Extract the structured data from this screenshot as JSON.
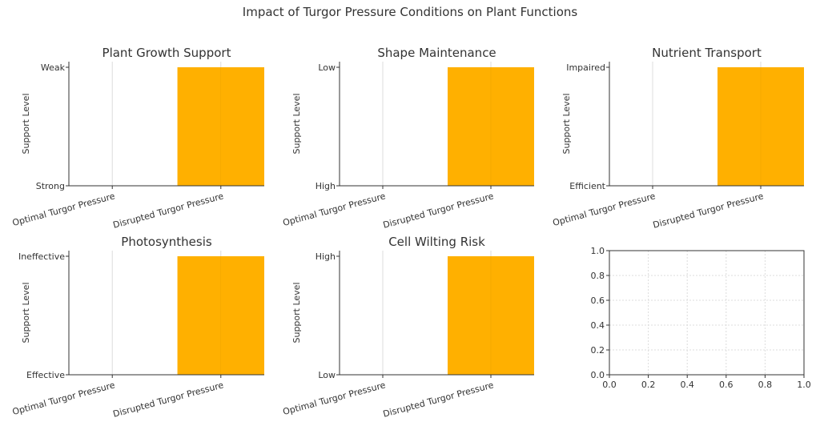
{
  "figure_title": "Impact of Turgor Pressure Conditions on Plant Functions",
  "colors": {
    "bar": "#ffb000",
    "axis": "#333333",
    "grid": "#dcdcdc",
    "text": "#333333"
  },
  "chart_data": [
    {
      "type": "bar",
      "title": "Plant Growth Support",
      "ylabel": "Support Level",
      "categories": [
        "Optimal Turgor Pressure",
        "Disrupted Turgor Pressure"
      ],
      "values": [
        0,
        1
      ],
      "ylim": [
        0,
        1
      ],
      "ytick_labels": [
        "Strong",
        "Weak"
      ],
      "grid": true
    },
    {
      "type": "bar",
      "title": "Shape Maintenance",
      "ylabel": "Support Level",
      "categories": [
        "Optimal Turgor Pressure",
        "Disrupted Turgor Pressure"
      ],
      "values": [
        0,
        1
      ],
      "ylim": [
        0,
        1
      ],
      "ytick_labels": [
        "High",
        "Low"
      ],
      "grid": true
    },
    {
      "type": "bar",
      "title": "Nutrient Transport",
      "ylabel": "Support Level",
      "categories": [
        "Optimal Turgor Pressure",
        "Disrupted Turgor Pressure"
      ],
      "values": [
        0,
        1
      ],
      "ylim": [
        0,
        1
      ],
      "ytick_labels": [
        "Efficient",
        "Impaired"
      ],
      "grid": true
    },
    {
      "type": "bar",
      "title": "Photosynthesis",
      "ylabel": "Support Level",
      "categories": [
        "Optimal Turgor Pressure",
        "Disrupted Turgor Pressure"
      ],
      "values": [
        0,
        1
      ],
      "ylim": [
        0,
        1
      ],
      "ytick_labels": [
        "Effective",
        "Ineffective"
      ],
      "grid": true
    },
    {
      "type": "bar",
      "title": "Cell Wilting Risk",
      "ylabel": "Support Level",
      "categories": [
        "Optimal Turgor Pressure",
        "Disrupted Turgor Pressure"
      ],
      "values": [
        0,
        1
      ],
      "ylim": [
        0,
        1
      ],
      "ytick_labels": [
        "Low",
        "High"
      ],
      "grid": true
    },
    {
      "type": "empty",
      "title": "",
      "xlim": [
        0,
        1
      ],
      "ylim": [
        0,
        1
      ],
      "xticks": [
        "0.0",
        "0.2",
        "0.4",
        "0.6",
        "0.8",
        "1.0"
      ],
      "yticks": [
        "0.0",
        "0.2",
        "0.4",
        "0.6",
        "0.8",
        "1.0"
      ],
      "grid": true
    }
  ]
}
